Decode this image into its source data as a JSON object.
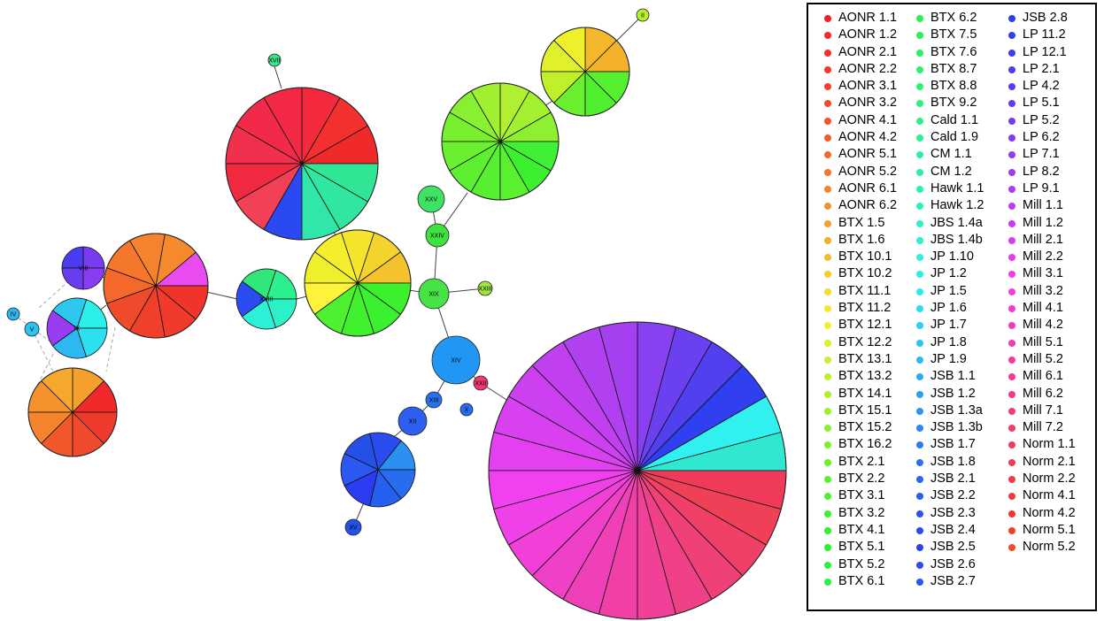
{
  "network": {
    "nodes": [
      {
        "id": "XVII",
        "label": "XVII",
        "color": "#3be58e"
      },
      {
        "id": "II",
        "label": "II",
        "color": "#b7f02e"
      },
      {
        "id": "XXV",
        "label": "XXV",
        "color": "#3ee264"
      },
      {
        "id": "XXIV",
        "label": "XXIV",
        "color": "#3ee23e"
      },
      {
        "id": "XIX",
        "label": "XIX",
        "color": "#46e246"
      },
      {
        "id": "XXIII",
        "label": "XXIII",
        "color": "#9ee63c"
      },
      {
        "id": "XVIII",
        "label": "XVIII",
        "color": ""
      },
      {
        "id": "VIII",
        "label": "VIII",
        "color": ""
      },
      {
        "id": "IV",
        "label": "IV",
        "color": "#2ab7f2"
      },
      {
        "id": "V",
        "label": "V",
        "color": "#2ac3f2"
      },
      {
        "id": "IX",
        "label": "IX",
        "color": ""
      },
      {
        "id": "XIV",
        "label": "XIV",
        "color": "#2196f3"
      },
      {
        "id": "XXII",
        "label": "XXII",
        "color": "#f03a6e"
      },
      {
        "id": "XIII",
        "label": "XIII",
        "color": "#2670ee"
      },
      {
        "id": "X",
        "label": "X",
        "color": "#2a6cf0"
      },
      {
        "id": "XII",
        "label": "XII",
        "color": "#2d5ff0"
      },
      {
        "id": "XV",
        "label": "XV",
        "color": "#2452e8"
      }
    ]
  },
  "legend": {
    "columns": [
      [
        {
          "label": "AONR 1.1",
          "color": "#f22020"
        },
        {
          "label": "AONR 1.2",
          "color": "#f22828"
        },
        {
          "label": "AONR 2.1",
          "color": "#f2302a"
        },
        {
          "label": "AONR 2.2",
          "color": "#f2382c"
        },
        {
          "label": "AONR 3.1",
          "color": "#f2402c"
        },
        {
          "label": "AONR 3.2",
          "color": "#f2482c"
        },
        {
          "label": "AONR 4.1",
          "color": "#f2522c"
        },
        {
          "label": "AONR 4.2",
          "color": "#f25c2c"
        },
        {
          "label": "AONR 5.1",
          "color": "#f2682c"
        },
        {
          "label": "AONR 5.2",
          "color": "#f2762c"
        },
        {
          "label": "AONR 6.1",
          "color": "#f2842c"
        },
        {
          "label": "AONR 6.2",
          "color": "#f2922c"
        },
        {
          "label": "BTX 1.5",
          "color": "#f4a02c"
        },
        {
          "label": "BTX 1.6",
          "color": "#f4ae2c"
        },
        {
          "label": "BTX 10.1",
          "color": "#f4bc2c"
        },
        {
          "label": "BTX 10.2",
          "color": "#f4cc2c"
        },
        {
          "label": "BTX 11.1",
          "color": "#f4dc2c"
        },
        {
          "label": "BTX 11.2",
          "color": "#f4ea2c"
        },
        {
          "label": "BTX 12.1",
          "color": "#eef02c"
        },
        {
          "label": "BTX 12.2",
          "color": "#dcf02c"
        },
        {
          "label": "BTX 13.1",
          "color": "#ccf02c"
        },
        {
          "label": "BTX 13.2",
          "color": "#bcf02c"
        },
        {
          "label": "BTX 14.1",
          "color": "#acf02c"
        },
        {
          "label": "BTX 15.1",
          "color": "#9cf02c"
        },
        {
          "label": "BTX 15.2",
          "color": "#8cf02c"
        },
        {
          "label": "BTX 16.2",
          "color": "#7cf02c"
        },
        {
          "label": "BTX 2.1",
          "color": "#6cf02c"
        },
        {
          "label": "BTX 2.2",
          "color": "#5cf02c"
        },
        {
          "label": "BTX 3.1",
          "color": "#4ef02c"
        },
        {
          "label": "BTX 3.2",
          "color": "#40f02c"
        },
        {
          "label": "BTX 4.1",
          "color": "#34f02c"
        },
        {
          "label": "BTX 5.1",
          "color": "#2cf030"
        },
        {
          "label": "BTX 5.2",
          "color": "#2cf03a"
        },
        {
          "label": "BTX 6.1",
          "color": "#2cf044"
        }
      ],
      [
        {
          "label": "BTX 6.2",
          "color": "#2cf04e"
        },
        {
          "label": "BTX 7.5",
          "color": "#2cf058"
        },
        {
          "label": "BTX 7.6",
          "color": "#2cf062"
        },
        {
          "label": "BTX 8.7",
          "color": "#2cf06c"
        },
        {
          "label": "BTX 8.8",
          "color": "#2cf076"
        },
        {
          "label": "BTX 9.2",
          "color": "#2cf080"
        },
        {
          "label": "Cald 1.1",
          "color": "#2cf08a"
        },
        {
          "label": "Cald 1.9",
          "color": "#2cf094"
        },
        {
          "label": "CM 1.1",
          "color": "#2cf09e"
        },
        {
          "label": "CM 1.2",
          "color": "#2cf0a8"
        },
        {
          "label": "Hawk 1.1",
          "color": "#2cf0b2"
        },
        {
          "label": "Hawk 1.2",
          "color": "#2cf0bc"
        },
        {
          "label": "JBS 1.4a",
          "color": "#2cf0c6"
        },
        {
          "label": "JBS 1.4b",
          "color": "#2cf0d0"
        },
        {
          "label": "JP 1.10",
          "color": "#2cf0da"
        },
        {
          "label": "JP 1.2",
          "color": "#2cf0e6"
        },
        {
          "label": "JP 1.5",
          "color": "#2ce8f0"
        },
        {
          "label": "JP 1.6",
          "color": "#2cdcf0"
        },
        {
          "label": "JP 1.7",
          "color": "#2cd0f0"
        },
        {
          "label": "JP 1.8",
          "color": "#2cc4f0"
        },
        {
          "label": "JP 1.9",
          "color": "#2cb8f0"
        },
        {
          "label": "JSB 1.1",
          "color": "#2cacf0"
        },
        {
          "label": "JSB 1.2",
          "color": "#2ca0f0"
        },
        {
          "label": "JSB 1.3a",
          "color": "#2c94f0"
        },
        {
          "label": "JSB 1.3b",
          "color": "#2c88f0"
        },
        {
          "label": "JSB 1.7",
          "color": "#2c7cf0"
        },
        {
          "label": "JSB 1.8",
          "color": "#2c70f0"
        },
        {
          "label": "JSB 2.1",
          "color": "#2c66f0"
        },
        {
          "label": "JSB 2.2",
          "color": "#2c5cf0"
        },
        {
          "label": "JSB 2.3",
          "color": "#2c52f0"
        },
        {
          "label": "JSB 2.4",
          "color": "#2c48f0"
        },
        {
          "label": "JSB 2.5",
          "color": "#2c40f0"
        },
        {
          "label": "JSB 2.6",
          "color": "#2c4af0"
        },
        {
          "label": "JSB 2.7",
          "color": "#2c54f0"
        }
      ],
      [
        {
          "label": "JSB 2.8",
          "color": "#2c40e8"
        },
        {
          "label": "LP 11.2",
          "color": "#3040f0"
        },
        {
          "label": "LP 12.1",
          "color": "#3a3cf0"
        },
        {
          "label": "LP 2.1",
          "color": "#4a3cf0"
        },
        {
          "label": "LP 4.2",
          "color": "#583cf0"
        },
        {
          "label": "LP 5.1",
          "color": "#663cf0"
        },
        {
          "label": "LP 5.2",
          "color": "#743cf0"
        },
        {
          "label": "LP 6.2",
          "color": "#823cf0"
        },
        {
          "label": "LP 7.1",
          "color": "#903cf0"
        },
        {
          "label": "LP 8.2",
          "color": "#9e3cf0"
        },
        {
          "label": "LP 9.1",
          "color": "#ac3cf0"
        },
        {
          "label": "Mill 1.1",
          "color": "#ba3cf0"
        },
        {
          "label": "Mill 1.2",
          "color": "#c83cf0"
        },
        {
          "label": "Mill 2.1",
          "color": "#d63cf0"
        },
        {
          "label": "Mill 2.2",
          "color": "#e43cf0"
        },
        {
          "label": "Mill 3.1",
          "color": "#f03ce8"
        },
        {
          "label": "Mill 3.2",
          "color": "#f03cda"
        },
        {
          "label": "Mill 4.1",
          "color": "#f03ccc"
        },
        {
          "label": "Mill 4.2",
          "color": "#f03cbe"
        },
        {
          "label": "Mill 5.1",
          "color": "#f03cb0"
        },
        {
          "label": "Mill 5.2",
          "color": "#f03ca2"
        },
        {
          "label": "Mill 6.1",
          "color": "#f03c94"
        },
        {
          "label": "Mill 6.2",
          "color": "#f03c86"
        },
        {
          "label": "Mill 7.1",
          "color": "#f03c78"
        },
        {
          "label": "Mill 7.2",
          "color": "#f03c6a"
        },
        {
          "label": "Norm 1.1",
          "color": "#f03c5c"
        },
        {
          "label": "Norm 2.1",
          "color": "#f03c50"
        },
        {
          "label": "Norm 2.2",
          "color": "#f03c44"
        },
        {
          "label": "Norm 4.1",
          "color": "#f03c38"
        },
        {
          "label": "Norm 4.2",
          "color": "#f0382c"
        },
        {
          "label": "Norm 5.1",
          "color": "#f0402c"
        },
        {
          "label": "Norm 5.2",
          "color": "#f04a2c"
        }
      ]
    ]
  }
}
